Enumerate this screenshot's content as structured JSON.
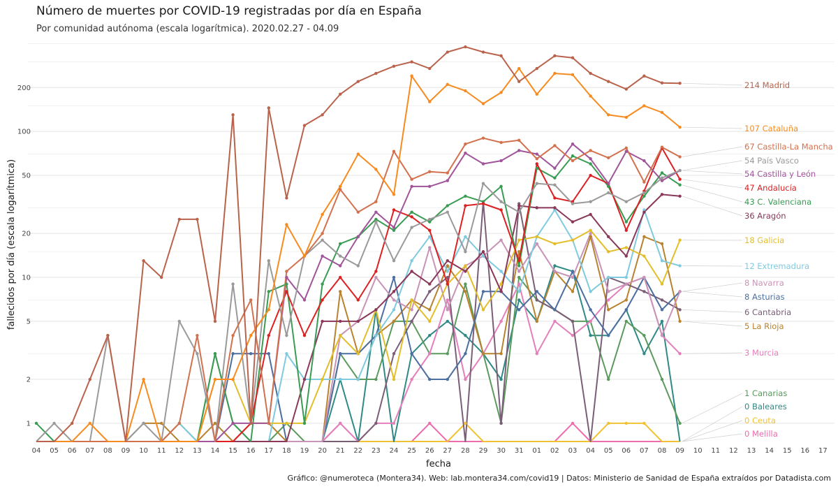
{
  "chart_data": {
    "type": "line",
    "title": "Número de muertes por COVID-19 registradas por día en España",
    "subtitle": "Por comunidad autónoma (escala logarítmica). 2020.02.27 - 04.09",
    "xlabel": "fecha",
    "ylabel": "fallecidos por día (escala logarítmica)",
    "caption": "Gráfico: @numeroteca (Montera34). Web: lab.montera34.com/covid19 | Datos: Ministerio de Sanidad de España extraídos por Datadista.com",
    "y_scale": "log",
    "yticks": [
      1,
      2,
      5,
      10,
      20,
      50,
      100,
      200
    ],
    "ylim": [
      0.75,
      420
    ],
    "grid": true,
    "x_tick_labels": [
      "04",
      "05",
      "06",
      "07",
      "08",
      "09",
      "10",
      "11",
      "12",
      "13",
      "14",
      "15",
      "16",
      "17",
      "18",
      "19",
      "20",
      "21",
      "22",
      "23",
      "24",
      "25",
      "26",
      "27",
      "28",
      "29",
      "30",
      "31",
      "01",
      "02",
      "03",
      "04",
      "05",
      "06",
      "07",
      "08",
      "09",
      "10",
      "11",
      "12",
      "13",
      "14",
      "15",
      "16",
      "17"
    ],
    "series": [
      {
        "name": "Madrid",
        "label": "214 Madrid",
        "color": "#b9634c",
        "values": [
          0,
          0,
          1,
          2,
          4,
          0,
          13,
          10,
          25,
          25,
          5,
          130,
          1,
          145,
          35,
          110,
          130,
          180,
          220,
          250,
          280,
          300,
          270,
          350,
          380,
          350,
          330,
          220,
          270,
          330,
          320,
          250,
          220,
          195,
          240,
          215,
          214
        ]
      },
      {
        "name": "Cataluña",
        "label": "107 Cataluña",
        "color": "#f78b1f",
        "values": [
          0,
          0,
          0,
          1,
          0,
          0,
          2,
          0,
          0,
          0,
          2,
          2,
          4,
          6,
          23,
          14,
          27,
          42,
          70,
          55,
          37,
          240,
          160,
          210,
          190,
          155,
          185,
          270,
          180,
          250,
          245,
          175,
          130,
          125,
          150,
          135,
          107
        ]
      },
      {
        "name": "Castilla-La Mancha",
        "label": "67 Castilla-La Mancha",
        "color": "#d2714e",
        "values": [
          0,
          0,
          0,
          0,
          0,
          0,
          0,
          0,
          1,
          4,
          0,
          4,
          7,
          1,
          11,
          14,
          20,
          40,
          28,
          33,
          73,
          47,
          53,
          52,
          82,
          90,
          84,
          87,
          65,
          80,
          63,
          74,
          66,
          77,
          45,
          78,
          67
        ]
      },
      {
        "name": "País Vasco",
        "label": "54 País Vasco",
        "color": "#9a9a9a",
        "values": [
          0,
          1,
          0,
          0,
          4,
          0,
          1,
          0,
          5,
          3,
          0,
          9,
          1,
          13,
          4,
          14,
          18,
          14,
          12,
          24,
          13,
          22,
          25,
          28,
          15,
          44,
          33,
          28,
          44,
          43,
          32,
          33,
          38,
          33,
          38,
          48,
          54
        ]
      },
      {
        "name": "Castilla y León",
        "label": "54 Castilla y León",
        "color": "#a0549a",
        "values": [
          0,
          0,
          0,
          0,
          0,
          0,
          0,
          0,
          0,
          0,
          0,
          1,
          1,
          1,
          10,
          7,
          14,
          12,
          19,
          28,
          22,
          42,
          42,
          46,
          71,
          60,
          63,
          74,
          70,
          56,
          82,
          65,
          44,
          73,
          63,
          46,
          54
        ]
      },
      {
        "name": "Andalucía",
        "label": "47 Andalucía",
        "color": "#dd2022",
        "values": [
          0,
          0,
          0,
          0,
          0,
          0,
          0,
          0,
          0,
          0,
          0,
          0,
          1,
          4,
          8,
          4,
          7,
          10,
          7,
          11,
          29,
          26,
          21,
          9,
          31,
          32,
          29,
          13,
          60,
          35,
          33,
          50,
          44,
          21,
          39,
          77,
          47
        ]
      },
      {
        "name": "C. Valenciana",
        "label": "43 C. Valenciana",
        "color": "#3a9c53",
        "values": [
          1,
          0,
          0,
          0,
          0,
          0,
          0,
          0,
          0,
          0,
          3,
          1,
          0,
          8,
          9,
          1,
          9,
          17,
          19,
          25,
          21,
          28,
          24,
          31,
          36,
          33,
          42,
          12,
          56,
          48,
          68,
          60,
          42,
          24,
          36,
          52,
          43
        ]
      },
      {
        "name": "Aragón",
        "label": "36 Aragón",
        "color": "#8a3859",
        "values": [
          0,
          0,
          0,
          0,
          0,
          0,
          0,
          0,
          0,
          0,
          0,
          0,
          0,
          0,
          0,
          2,
          5,
          5,
          5,
          6,
          8,
          11,
          9,
          13,
          11,
          15,
          8,
          31,
          30,
          30,
          24,
          27,
          19,
          14,
          28,
          37,
          36
        ]
      },
      {
        "name": "Galicia",
        "label": "18 Galicia",
        "color": "#e2be2a",
        "values": [
          0,
          0,
          0,
          0,
          0,
          0,
          0,
          0,
          0,
          0,
          2,
          2,
          1,
          1,
          1,
          1,
          2,
          4,
          3,
          6,
          2,
          7,
          5,
          9,
          12,
          6,
          9,
          18,
          19,
          17,
          18,
          21,
          15,
          16,
          14,
          9,
          18
        ]
      },
      {
        "name": "Extremadura",
        "label": "12 Extremadura",
        "color": "#7fcadf",
        "values": [
          0,
          0,
          0,
          0,
          0,
          0,
          0,
          0,
          1,
          0,
          0,
          0,
          0,
          0,
          3,
          2,
          2,
          2,
          2,
          4,
          6,
          13,
          19,
          11,
          19,
          14,
          11,
          8,
          19,
          29,
          18,
          8,
          10,
          10,
          29,
          13,
          12
        ]
      },
      {
        "name": "Navarra",
        "label": "8 Navarra",
        "color": "#c893b6",
        "values": [
          0,
          0,
          0,
          0,
          0,
          0,
          0,
          0,
          0,
          0,
          0,
          0,
          0,
          0,
          0,
          0,
          0,
          4,
          5,
          10,
          7,
          6,
          16,
          6,
          12,
          14,
          18,
          11,
          17,
          11,
          10,
          20,
          8,
          9,
          10,
          4,
          8
        ]
      },
      {
        "name": "Asturias",
        "label": "8 Asturias",
        "color": "#4c6fa0",
        "values": [
          0,
          0,
          0,
          0,
          0,
          0,
          0,
          0,
          0,
          0,
          0,
          3,
          3,
          3,
          0,
          0,
          0,
          3,
          3,
          4,
          10,
          3,
          2,
          2,
          3,
          8,
          8,
          6,
          8,
          6,
          11,
          6,
          4,
          6,
          10,
          6,
          8
        ]
      },
      {
        "name": "Cantabria",
        "label": "6 Cantabria",
        "color": "#7a5e78",
        "values": [
          0,
          0,
          0,
          0,
          0,
          0,
          0,
          0,
          0,
          0,
          0,
          0,
          0,
          0,
          0,
          0,
          0,
          0,
          0,
          1,
          3,
          5,
          8,
          10,
          0,
          33,
          1,
          32,
          7,
          6,
          5,
          0,
          10,
          9,
          8,
          7,
          6
        ]
      },
      {
        "name": "La Rioja",
        "label": "5 La Rioja",
        "color": "#b8832f",
        "values": [
          0,
          0,
          0,
          0,
          0,
          0,
          1,
          1,
          0,
          0,
          1,
          0,
          1,
          1,
          0,
          0,
          0,
          8,
          3,
          4,
          5,
          7,
          6,
          12,
          8,
          3,
          3,
          15,
          5,
          11,
          8,
          19,
          6,
          7,
          19,
          17,
          5
        ]
      },
      {
        "name": "Murcia",
        "label": "3 Murcia",
        "color": "#e57fbc",
        "values": [
          0,
          0,
          0,
          0,
          0,
          0,
          0,
          0,
          0,
          0,
          0,
          0,
          0,
          0,
          0,
          0,
          0,
          1,
          0,
          1,
          1,
          2,
          3,
          7,
          2,
          3,
          5,
          9,
          3,
          5,
          4,
          5,
          7,
          9,
          10,
          4,
          3
        ]
      },
      {
        "name": "Canarias",
        "label": "1 Canarias",
        "color": "#5b9a5d",
        "values": [
          0,
          0,
          0,
          0,
          0,
          0,
          0,
          0,
          1,
          0,
          3,
          1,
          0,
          0,
          1,
          0,
          0,
          3,
          2,
          2,
          5,
          5,
          3,
          3,
          9,
          3,
          1,
          10,
          7,
          6,
          5,
          5,
          2,
          5,
          4,
          2,
          1
        ]
      },
      {
        "name": "Baleares",
        "label": "0 Baleares",
        "color": "#2f8a86",
        "values": [
          0,
          0,
          0,
          0,
          0,
          0,
          0,
          0,
          0,
          0,
          0,
          0,
          0,
          0,
          0,
          0,
          0,
          2,
          0,
          6,
          0,
          3,
          4,
          5,
          4,
          3,
          2,
          7,
          5,
          12,
          11,
          4,
          4,
          6,
          3,
          5,
          0
        ]
      },
      {
        "name": "Ceuta",
        "label": "0 Ceuta",
        "color": "#f1c232",
        "values": [
          0,
          0,
          0,
          0,
          0,
          0,
          0,
          0,
          0,
          0,
          0,
          0,
          0,
          0,
          0,
          0,
          0,
          0,
          0,
          0,
          0,
          0,
          0,
          0,
          1,
          0,
          0,
          0,
          0,
          0,
          0,
          0,
          1,
          1,
          1,
          0,
          0
        ]
      },
      {
        "name": "Melilla",
        "label": "0 Melilla",
        "color": "#ee6bad",
        "values": [
          0,
          0,
          0,
          0,
          0,
          0,
          0,
          0,
          0,
          0,
          0,
          0,
          0,
          0,
          0,
          0,
          0,
          1,
          0,
          0,
          0,
          0,
          1,
          0,
          0,
          0,
          0,
          0,
          0,
          0,
          1,
          0,
          0,
          0,
          0,
          0,
          0
        ]
      }
    ]
  }
}
